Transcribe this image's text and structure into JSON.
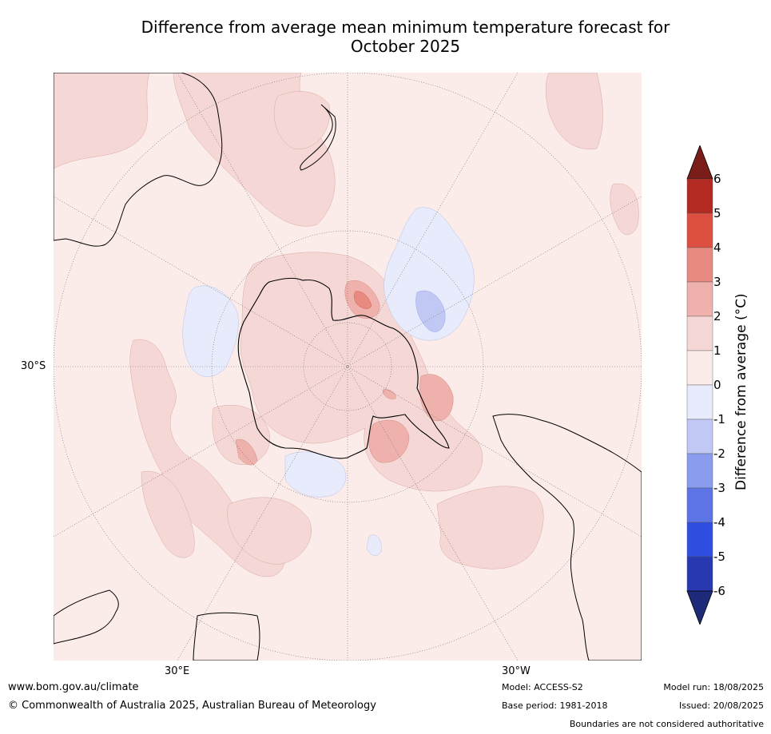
{
  "title_line1": "Difference from average mean minimum temperature forecast for",
  "title_line2": "October 2025",
  "axes": {
    "lat_label": "30°S",
    "lon_labels": [
      "30°E",
      "30°W"
    ]
  },
  "colorbar": {
    "label": "Difference from average (°C)",
    "ticks": [
      "6",
      "5",
      "4",
      "3",
      "2",
      "1",
      "0",
      "-1",
      "-2",
      "-3",
      "-4",
      "-5",
      "-6"
    ],
    "colors_top_to_bottom": [
      "#b22a22",
      "#dc4f41",
      "#e88a80",
      "#efb1ab",
      "#f5d8d6",
      "#fbecea",
      "#e8ebfb",
      "#c0c8f3",
      "#8a9cee",
      "#5c74e6",
      "#2f4fe0",
      "#2738b0"
    ],
    "extend_max_color": "#7a1d18",
    "extend_min_color": "#1d2a7a"
  },
  "map": {
    "projection": "south polar stereographic",
    "background_color": "#fbecea",
    "land_outline_color": "#000000"
  },
  "footer": {
    "website": "www.bom.gov.au/climate",
    "copyright": "© Commonwealth of Australia 2025, Australian Bureau of Meteorology",
    "model": "Model: ACCESS-S2",
    "base_period": "Base period: 1981-2018",
    "model_run": "Model run: 18/08/2025",
    "issued": "Issued: 20/08/2025",
    "disclaimer": "Boundaries are not considered authoritative"
  }
}
